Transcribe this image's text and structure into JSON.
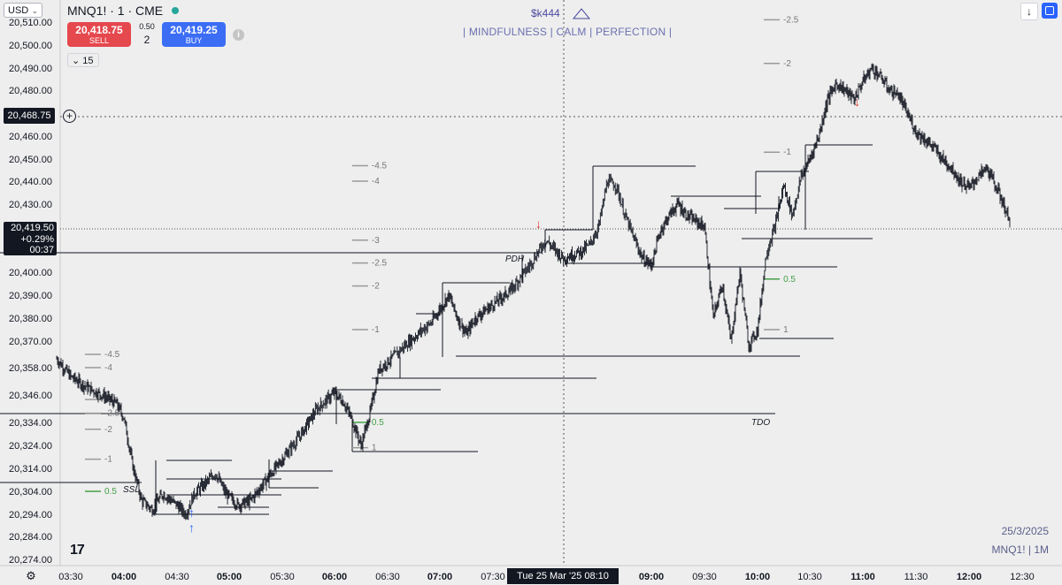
{
  "header": {
    "currency": "USD",
    "symbol_title": "MNQ1! · 1 · CME",
    "sell_price": "20,418.75",
    "sell_label": "SELL",
    "buy_price": "20,419.25",
    "buy_label": "BUY",
    "spread": "0.50",
    "quantity": "2",
    "interval": "15",
    "info_icon": "i"
  },
  "watermark": {
    "handle": "$k444",
    "tagline": "| MINDFULNESS | CALM | PERFECTION |"
  },
  "price_labels": {
    "crosshair_price": "20,468.75",
    "last_price": "20,419.50",
    "last_change": "+0.29%",
    "last_countdown": "00:37"
  },
  "crosshair_time": "Tue 25 Mar '25   08:10",
  "stamp": {
    "date": "25/3/2025",
    "symbol": "MNQ1! | 1M"
  },
  "logo_text": "17",
  "colors": {
    "sell": "#e5484d",
    "buy": "#3b6df5",
    "accent": "#2962ff",
    "candle": "#131722",
    "level_green": "#43a047"
  },
  "icons": [
    "settings-gear-icon",
    "info-icon",
    "chevron-down-icon",
    "plus-circle-icon",
    "down-arrow-icon",
    "settings-square-icon",
    "tradingview-logo-icon"
  ],
  "chart_data": {
    "type": "candlestick",
    "y_axis": {
      "ticks": [
        "20,510.00",
        "20,500.00",
        "20,490.00",
        "20,480.00",
        "20,470.00",
        "20,460.00",
        "20,450.00",
        "20,440.00",
        "20,430.00",
        "20,410.00",
        "20,400.00",
        "20,390.00",
        "20,380.00",
        "20,370.00",
        "20,358.00",
        "20,346.00",
        "20,334.00",
        "20,324.00",
        "20,314.00",
        "20,304.00",
        "20,294.00",
        "20,284.00",
        "20,274.00"
      ],
      "tick_values": [
        20510,
        20500,
        20490,
        20480,
        20470,
        20460,
        20450,
        20440,
        20430,
        20410,
        20400,
        20390,
        20380,
        20370,
        20358,
        20346,
        20334,
        20324,
        20314,
        20304,
        20294,
        20284,
        20274
      ],
      "range": [
        20272,
        20512
      ]
    },
    "x_axis": {
      "ticks": [
        "03:30",
        "04:00",
        "04:30",
        "05:00",
        "05:30",
        "06:00",
        "06:30",
        "07:00",
        "07:30",
        "09:00",
        "09:30",
        "10:00",
        "10:30",
        "11:00",
        "11:30",
        "12:00",
        "12:30"
      ],
      "tick_times": [
        210,
        240,
        270,
        300,
        330,
        360,
        390,
        420,
        450,
        540,
        570,
        600,
        630,
        660,
        690,
        720,
        750
      ],
      "bold": [
        false,
        true,
        false,
        true,
        false,
        true,
        false,
        true,
        false,
        true,
        false,
        true,
        false,
        true,
        false,
        true,
        false
      ],
      "range": [
        202,
        770
      ]
    },
    "series_path": [
      {
        "t": 202,
        "p": 20362
      },
      {
        "t": 210,
        "p": 20354
      },
      {
        "t": 220,
        "p": 20349
      },
      {
        "t": 230,
        "p": 20345
      },
      {
        "t": 236,
        "p": 20342
      },
      {
        "t": 240,
        "p": 20336
      },
      {
        "t": 245,
        "p": 20315
      },
      {
        "t": 250,
        "p": 20300
      },
      {
        "t": 256,
        "p": 20296
      },
      {
        "t": 262,
        "p": 20303
      },
      {
        "t": 270,
        "p": 20298
      },
      {
        "t": 275,
        "p": 20294
      },
      {
        "t": 280,
        "p": 20303
      },
      {
        "t": 287,
        "p": 20308
      },
      {
        "t": 292,
        "p": 20312
      },
      {
        "t": 298,
        "p": 20303
      },
      {
        "t": 305,
        "p": 20298
      },
      {
        "t": 312,
        "p": 20300
      },
      {
        "t": 320,
        "p": 20308
      },
      {
        "t": 330,
        "p": 20318
      },
      {
        "t": 340,
        "p": 20328
      },
      {
        "t": 350,
        "p": 20340
      },
      {
        "t": 360,
        "p": 20347
      },
      {
        "t": 365,
        "p": 20343
      },
      {
        "t": 370,
        "p": 20335
      },
      {
        "t": 375,
        "p": 20324
      },
      {
        "t": 380,
        "p": 20338
      },
      {
        "t": 385,
        "p": 20357
      },
      {
        "t": 392,
        "p": 20362
      },
      {
        "t": 400,
        "p": 20368
      },
      {
        "t": 410,
        "p": 20375
      },
      {
        "t": 415,
        "p": 20378
      },
      {
        "t": 420,
        "p": 20384
      },
      {
        "t": 425,
        "p": 20390
      },
      {
        "t": 430,
        "p": 20380
      },
      {
        "t": 435,
        "p": 20373
      },
      {
        "t": 440,
        "p": 20380
      },
      {
        "t": 450,
        "p": 20386
      },
      {
        "t": 460,
        "p": 20392
      },
      {
        "t": 470,
        "p": 20402
      },
      {
        "t": 480,
        "p": 20414
      },
      {
        "t": 485,
        "p": 20410
      },
      {
        "t": 490,
        "p": 20406
      },
      {
        "t": 500,
        "p": 20409
      },
      {
        "t": 505,
        "p": 20412
      },
      {
        "t": 510,
        "p": 20420
      },
      {
        "t": 515,
        "p": 20440
      },
      {
        "t": 520,
        "p": 20438
      },
      {
        "t": 525,
        "p": 20425
      },
      {
        "t": 530,
        "p": 20415
      },
      {
        "t": 535,
        "p": 20406
      },
      {
        "t": 540,
        "p": 20403
      },
      {
        "t": 545,
        "p": 20418
      },
      {
        "t": 550,
        "p": 20425
      },
      {
        "t": 555,
        "p": 20430
      },
      {
        "t": 560,
        "p": 20425
      },
      {
        "t": 570,
        "p": 20420
      },
      {
        "t": 575,
        "p": 20380
      },
      {
        "t": 580,
        "p": 20395
      },
      {
        "t": 585,
        "p": 20370
      },
      {
        "t": 590,
        "p": 20400
      },
      {
        "t": 595,
        "p": 20368
      },
      {
        "t": 600,
        "p": 20375
      },
      {
        "t": 605,
        "p": 20408
      },
      {
        "t": 610,
        "p": 20420
      },
      {
        "t": 615,
        "p": 20438
      },
      {
        "t": 620,
        "p": 20425
      },
      {
        "t": 625,
        "p": 20442
      },
      {
        "t": 630,
        "p": 20450
      },
      {
        "t": 635,
        "p": 20460
      },
      {
        "t": 640,
        "p": 20476
      },
      {
        "t": 645,
        "p": 20483
      },
      {
        "t": 650,
        "p": 20480
      },
      {
        "t": 655,
        "p": 20476
      },
      {
        "t": 660,
        "p": 20484
      },
      {
        "t": 665,
        "p": 20490
      },
      {
        "t": 670,
        "p": 20486
      },
      {
        "t": 675,
        "p": 20480
      },
      {
        "t": 680,
        "p": 20478
      },
      {
        "t": 685,
        "p": 20470
      },
      {
        "t": 690,
        "p": 20462
      },
      {
        "t": 700,
        "p": 20455
      },
      {
        "t": 705,
        "p": 20450
      },
      {
        "t": 710,
        "p": 20446
      },
      {
        "t": 715,
        "p": 20440
      },
      {
        "t": 720,
        "p": 20437
      },
      {
        "t": 725,
        "p": 20442
      },
      {
        "t": 730,
        "p": 20446
      },
      {
        "t": 735,
        "p": 20438
      },
      {
        "t": 740,
        "p": 20429
      },
      {
        "t": 743,
        "p": 20421
      }
    ],
    "levels": [
      {
        "label": "-4.5",
        "t": 242,
        "p": 20364
      },
      {
        "label": "-4",
        "t": 242,
        "p": 20358
      },
      {
        "label": "-3",
        "t": 242,
        "p": 20344
      },
      {
        "label": "-2.5",
        "t": 242,
        "p": 20338
      },
      {
        "label": "-2",
        "t": 242,
        "p": 20331
      },
      {
        "label": "-1",
        "t": 242,
        "p": 20318
      },
      {
        "label": "0.5",
        "t": 242,
        "p": 20304
      },
      {
        "label": "-4.5",
        "t": 394,
        "p": 20447
      },
      {
        "label": "-4",
        "t": 394,
        "p": 20440
      },
      {
        "label": "-3",
        "t": 394,
        "p": 20414
      },
      {
        "label": "-2.5",
        "t": 394,
        "p": 20404
      },
      {
        "label": "-2",
        "t": 394,
        "p": 20394
      },
      {
        "label": "-1",
        "t": 394,
        "p": 20375
      },
      {
        "label": "0.5",
        "t": 394,
        "p": 20334
      },
      {
        "label": "1",
        "t": 394,
        "p": 20323
      },
      {
        "label": "-2.5",
        "t": 628,
        "p": 20511
      },
      {
        "label": "-2",
        "t": 628,
        "p": 20492
      },
      {
        "label": "-1",
        "t": 628,
        "p": 20453
      },
      {
        "label": "0.5",
        "t": 628,
        "p": 20397
      },
      {
        "label": "1",
        "t": 628,
        "p": 20375
      }
    ],
    "annotations": [
      "SSL",
      "PDH",
      "TDO"
    ]
  }
}
